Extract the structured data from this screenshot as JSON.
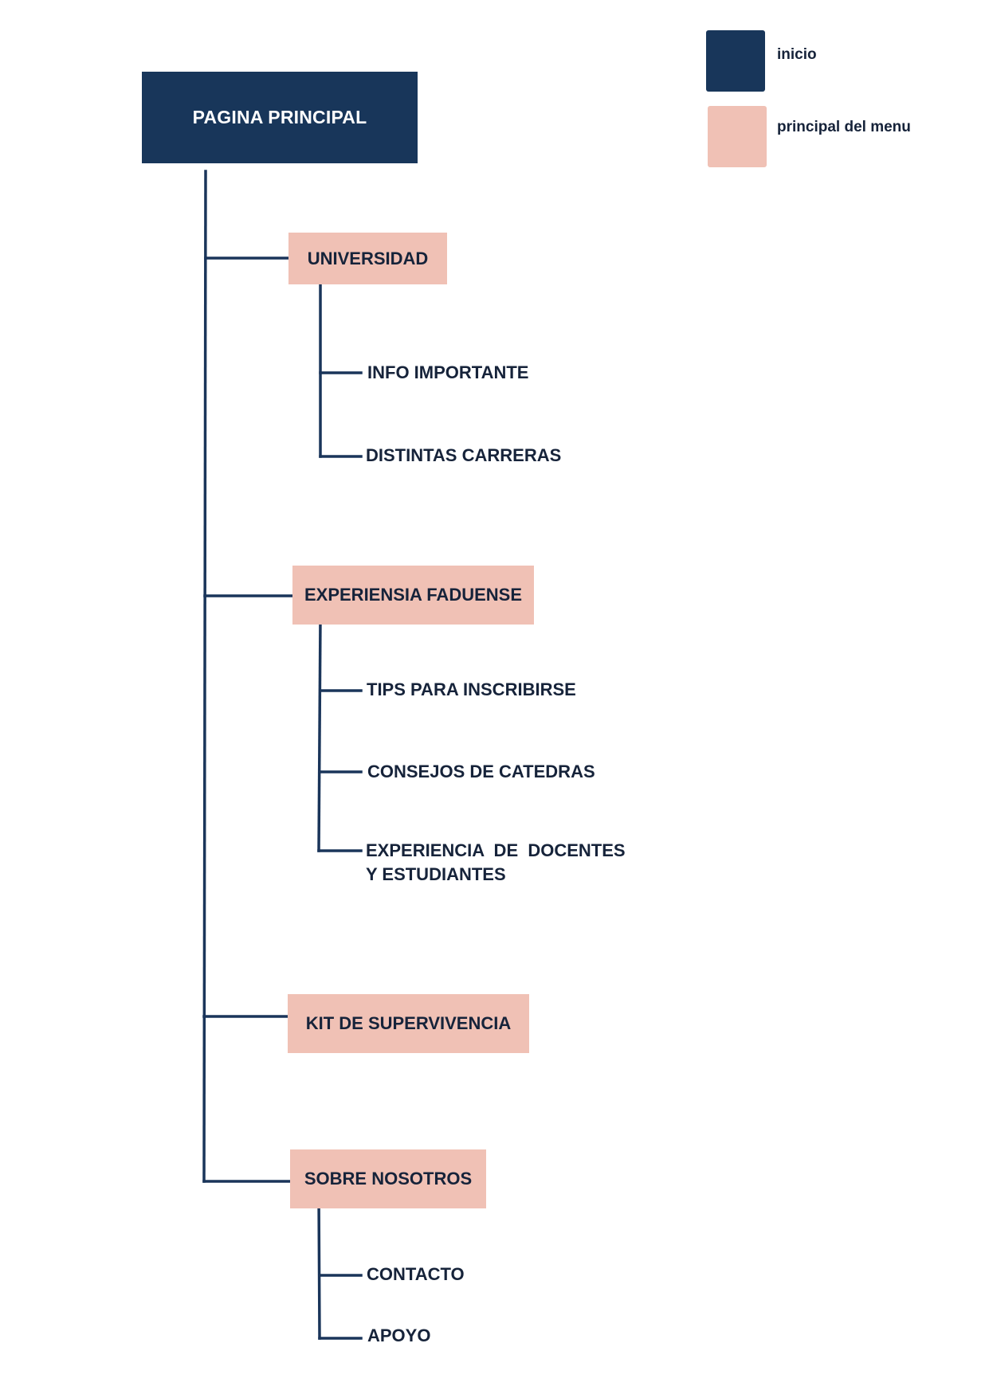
{
  "colors": {
    "inicio": "#18365a",
    "principal_del_menu": "#f0c1b5",
    "connector": "#1a355a",
    "text": "#16233a"
  },
  "legend": {
    "items": [
      {
        "label": "inicio",
        "color": "#18365a"
      },
      {
        "label": "principal del menu",
        "color": "#f0c1b5"
      }
    ]
  },
  "root": {
    "label": "PAGINA PRINCIPAL"
  },
  "menu": [
    {
      "label": "UNIVERSIDAD",
      "children": [
        "INFO IMPORTANTE",
        "DISTINTAS CARRERAS"
      ]
    },
    {
      "label": "EXPERIENSIA FADUENSE",
      "children": [
        "TIPS PARA INSCRIBIRSE",
        "CONSEJOS DE CATEDRAS",
        "EXPERIENCIA  DE  DOCENTES",
        "Y ESTUDIANTES"
      ]
    },
    {
      "label": "KIT DE SUPERVIVENCIA",
      "children": []
    },
    {
      "label": "SOBRE NOSOTROS",
      "children": [
        "CONTACTO",
        "APOYO"
      ]
    }
  ]
}
